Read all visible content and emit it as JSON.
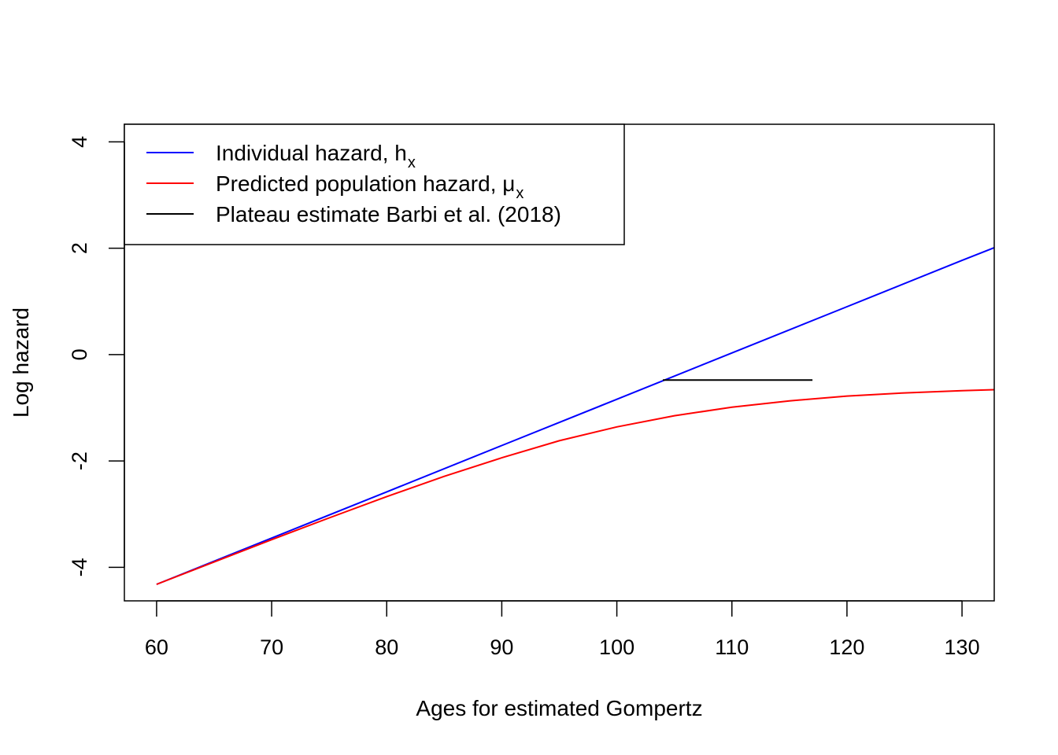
{
  "chart_data": {
    "type": "line",
    "title": "",
    "xlabel": "Ages for estimated Gompertz",
    "ylabel": "Log hazard",
    "xlim": [
      57.2,
      132.8
    ],
    "ylim": [
      -4.63,
      4.33
    ],
    "x_ticks": [
      60,
      70,
      80,
      90,
      100,
      110,
      120,
      130
    ],
    "x_tick_labels": [
      "60",
      "70",
      "80",
      "90",
      "100",
      "110",
      "120",
      "130"
    ],
    "y_ticks": [
      -4,
      -2,
      0,
      2,
      4
    ],
    "y_tick_labels": [
      "-4",
      "-2",
      "0",
      "2",
      "4"
    ],
    "grid": false,
    "legend_position": "top-left",
    "legend": [
      {
        "label": "Individual hazard, h",
        "subscript": "x",
        "color": "#0000ff"
      },
      {
        "label": "Predicted population hazard,  μ",
        "subscript": "x",
        "color": "#ff0000"
      },
      {
        "label": "Plateau estimate Barbi et al. (2018)",
        "subscript": "",
        "color": "#000000"
      }
    ],
    "series": [
      {
        "name": "Individual hazard, h",
        "color": "#0000ff",
        "x": [
          60,
          70,
          80,
          90,
          100,
          110,
          120,
          130,
          132.8
        ],
        "y": [
          -4.32,
          -3.45,
          -2.58,
          -1.71,
          -0.84,
          0.03,
          0.9,
          1.77,
          2.01
        ]
      },
      {
        "name": "Predicted population hazard,  μ",
        "color": "#ff0000",
        "x": [
          60,
          65,
          70,
          75,
          80,
          85,
          90,
          95,
          100,
          105,
          110,
          115,
          120,
          125,
          130,
          132.8
        ],
        "y": [
          -4.32,
          -3.9,
          -3.48,
          -3.07,
          -2.67,
          -2.29,
          -1.94,
          -1.62,
          -1.36,
          -1.15,
          -0.99,
          -0.87,
          -0.78,
          -0.72,
          -0.68,
          -0.66
        ]
      },
      {
        "name": "Plateau estimate Barbi et al. (2018)",
        "color": "#000000",
        "x": [
          104,
          117
        ],
        "y": [
          -0.48,
          -0.48
        ]
      }
    ]
  }
}
